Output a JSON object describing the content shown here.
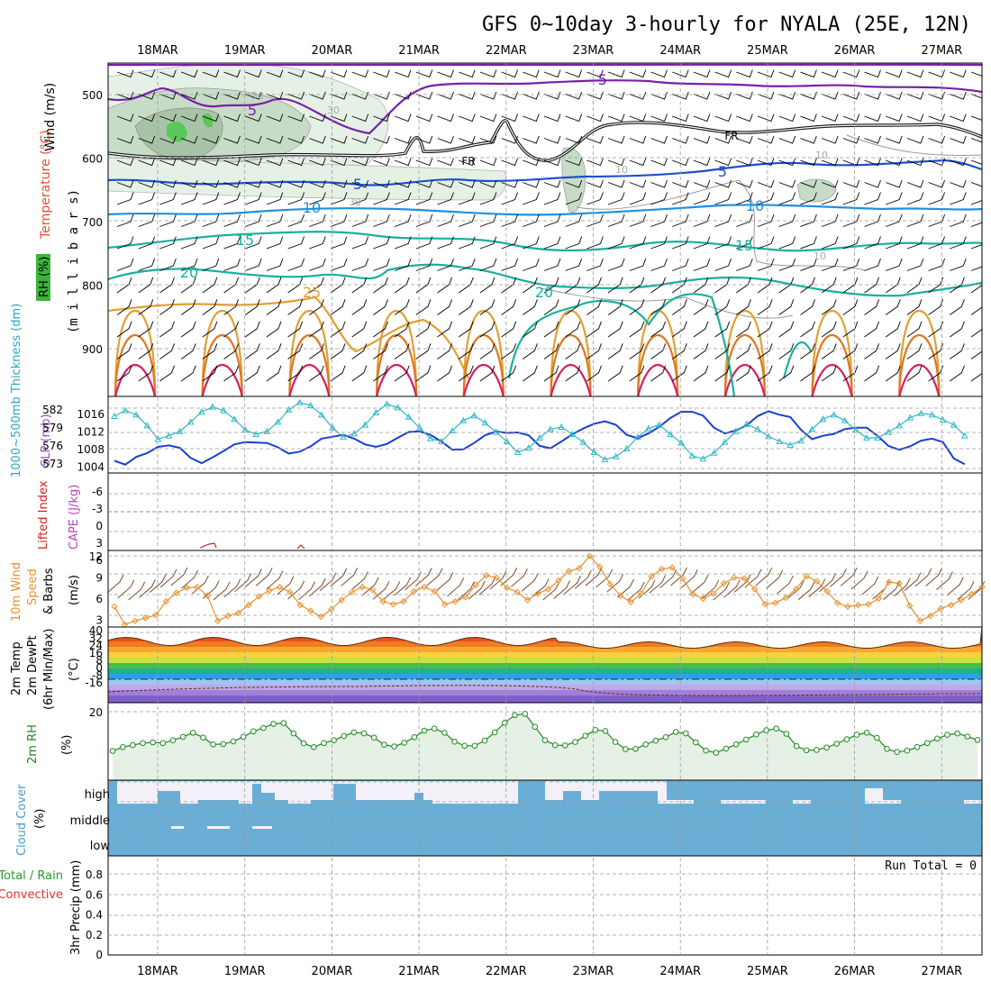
{
  "title": "GFS 0~10day 3-hourly for NYALA (25E, 12N)",
  "dates": [
    "18MAR",
    "19MAR",
    "20MAR",
    "21MAR",
    "22MAR",
    "23MAR",
    "24MAR",
    "25MAR",
    "26MAR",
    "27MAR"
  ],
  "run_total": "Run Total = 0",
  "panels": {
    "upper": {
      "ylabel": "(m i l l i b a r s)",
      "wind_label": "Wind (m/s)",
      "temp_label": "Temperature (°C)",
      "rh_label": "RH (%)",
      "ticks": [
        "500",
        "600",
        "700",
        "800",
        "900"
      ],
      "contour_labels": [
        "-5",
        "5",
        "FR",
        "FR",
        "5",
        "5",
        "10",
        "10",
        "15",
        "15",
        "20",
        "20",
        "25",
        "50",
        "30",
        "30",
        "10",
        "10",
        "10"
      ]
    },
    "slp": {
      "thickness_label": "1000~500mb Thickness (dm)",
      "slp_label": "SLP (mb)",
      "left_ticks": [
        "582",
        "579",
        "576",
        "573"
      ],
      "right_ticks": [
        "1016",
        "1012",
        "1008",
        "1004"
      ]
    },
    "cape": {
      "li_label": "Lifted Index",
      "cape_label": "CAPE (J/kg)",
      "ticks": [
        "-6",
        "-3",
        "0",
        "3",
        "6"
      ]
    },
    "wind10": {
      "label1": "10m Wind",
      "label2": "Speed",
      "label3": "& Barbs",
      "unit": "(m/s)",
      "ticks": [
        "12",
        "9",
        "6",
        "3"
      ]
    },
    "temp2m": {
      "label1": "2m Temp",
      "label2": "2m DewPt",
      "label3": "(6hr Min/Max)",
      "unit": "(°C)",
      "ticks": [
        "40",
        "32",
        "24",
        "16",
        "8",
        "0",
        "-8",
        "-16"
      ]
    },
    "rh2m": {
      "label": "2m RH",
      "unit": "(%)",
      "ticks": [
        "20"
      ]
    },
    "cloud": {
      "label": "Cloud Cover",
      "unit": "(%)",
      "levels": [
        "high",
        "middle",
        "low"
      ]
    },
    "precip": {
      "label1": "Total / Rain",
      "label2": "Convective",
      "ylabel": "3hr Precip (mm)",
      "ticks": [
        "0.8",
        "0.6",
        "0.4",
        "0.2",
        "0"
      ]
    }
  },
  "chart_data": [
    {
      "type": "line",
      "name": "thickness_and_slp",
      "x": [
        "17MAR12",
        "17MAR15",
        "17MAR18",
        "17MAR21",
        "18MAR00",
        "18MAR03",
        "18MAR06",
        "18MAR09",
        "18MAR12",
        "18MAR15",
        "18MAR18",
        "18MAR21",
        "19MAR00",
        "19MAR03",
        "19MAR06",
        "19MAR09",
        "19MAR12",
        "19MAR15",
        "19MAR18",
        "19MAR21",
        "20MAR00",
        "20MAR03",
        "20MAR06",
        "20MAR09",
        "20MAR12",
        "20MAR15",
        "20MAR18",
        "20MAR21",
        "21MAR00",
        "21MAR03",
        "21MAR06",
        "21MAR09",
        "21MAR12",
        "21MAR15",
        "21MAR18",
        "21MAR21",
        "22MAR00",
        "22MAR03",
        "22MAR06",
        "22MAR09",
        "22MAR12",
        "22MAR15",
        "22MAR18",
        "22MAR21",
        "23MAR00",
        "23MAR03",
        "23MAR06",
        "23MAR09",
        "23MAR12",
        "23MAR15",
        "23MAR18",
        "23MAR21",
        "24MAR00",
        "24MAR03",
        "24MAR06",
        "24MAR09",
        "24MAR12",
        "24MAR15",
        "24MAR18",
        "24MAR21",
        "25MAR00",
        "25MAR03",
        "25MAR06",
        "25MAR09",
        "25MAR12",
        "25MAR15",
        "25MAR18",
        "25MAR21",
        "26MAR00",
        "26MAR03",
        "26MAR06",
        "26MAR09",
        "26MAR12",
        "26MAR15",
        "26MAR18",
        "26MAR21",
        "27MAR00",
        "27MAR03",
        "27MAR06"
      ],
      "series": [
        {
          "values": [
            580.5,
            581.3,
            580.7,
            579.2,
            577.3,
            577.8,
            578.4,
            579.7,
            581.1,
            581.8,
            581.3,
            580.1,
            578.6,
            578.0,
            578.4,
            579.7,
            581.4,
            582.4,
            582.0,
            580.7,
            578.9,
            577.6,
            578.1,
            579.3,
            581.0,
            582.2,
            581.7,
            580.4,
            578.9,
            577.4,
            577.0,
            578.5,
            579.9,
            580.6,
            579.6,
            578.3,
            577.0,
            575.5,
            576.1,
            577.5,
            578.7,
            579.0,
            578.0,
            576.9,
            575.5,
            574.5,
            574.9,
            576.0,
            577.6,
            578.8,
            579.3,
            578.0,
            576.8,
            575.0,
            574.6,
            575.4,
            576.9,
            578.4,
            579.4,
            578.7,
            577.7,
            577.0,
            576.5,
            577.1,
            578.7,
            580.1,
            580.7,
            579.9,
            578.6,
            577.5,
            577.5,
            578.3,
            579.2,
            580.3,
            580.9,
            580.7,
            580.0,
            579.3,
            577.8
          ]
        },
        {
          "values": [
            1005.6,
            1004.8,
            1006.4,
            1007.2,
            1008.5,
            1008.8,
            1008.3,
            1006.2,
            1005.1,
            1006.3,
            1007.6,
            1009.0,
            1009.5,
            1009.4,
            1009.3,
            1008.4,
            1007.1,
            1007.5,
            1008.6,
            1010.2,
            1010.6,
            1011.0,
            1010.2,
            1009.0,
            1008.5,
            1009.1,
            1010.4,
            1011.6,
            1011.7,
            1011.0,
            1009.6,
            1007.9,
            1008.0,
            1009.3,
            1010.9,
            1011.7,
            1011.4,
            1011.5,
            1010.9,
            1008.7,
            1008.2,
            1009.6,
            1011.1,
            1012.3,
            1013.3,
            1013.8,
            1013.1,
            1011.0,
            1010.3,
            1011.3,
            1012.7,
            1014.5,
            1015.8,
            1015.8,
            1015.0,
            1012.5,
            1011.3,
            1011.9,
            1013.0,
            1014.9,
            1015.9,
            1015.2,
            1014.7,
            1012.0,
            1010.1,
            1010.8,
            1011.2,
            1012.2,
            1012.5,
            1012.5,
            1010.8,
            1008.7,
            1007.9,
            1008.6,
            1009.8,
            1010.2,
            1009.5,
            1006.1,
            1004.9
          ]
        }
      ],
      "ylim_left": [
        573,
        582
      ],
      "ylim_right": [
        1004,
        1016
      ]
    },
    {
      "type": "line",
      "name": "wind10m_speed",
      "series": [
        {
          "values": [
            4.6,
            2.1,
            2.6,
            3.0,
            3.4,
            5.3,
            6.5,
            7.2,
            7.3,
            6.1,
            2.6,
            3.3,
            3.7,
            4.8,
            6.0,
            6.8,
            7.3,
            6.6,
            4.8,
            4.0,
            3.2,
            4.2,
            5.5,
            6.6,
            7.3,
            6.9,
            5.3,
            4.9,
            5.3,
            6.7,
            7.3,
            6.7,
            4.9,
            5.3,
            5.9,
            7.6,
            8.9,
            8.6,
            7.2,
            6.6,
            5.5,
            6.4,
            7.0,
            8.2,
            9.5,
            9.9,
            11.6,
            10.1,
            7.7,
            6.1,
            5.2,
            6.4,
            8.8,
            9.8,
            10.0,
            8.5,
            6.3,
            5.7,
            6.4,
            7.8,
            8.6,
            8.5,
            7.0,
            4.9,
            5.1,
            5.8,
            7.0,
            8.8,
            8.1,
            6.7,
            5.1,
            4.6,
            4.8,
            4.9,
            5.7,
            8.0,
            7.8,
            4.7,
            2.6,
            3.3,
            4.3,
            4.8,
            5.5,
            6.3,
            7.3
          ]
        }
      ],
      "ylim": [
        2,
        12
      ]
    },
    {
      "type": "area",
      "name": "rh2m",
      "series": [
        {
          "values": [
            8.5,
            9.6,
            10.2,
            10.8,
            11.0,
            10.8,
            11.6,
            12.6,
            13.8,
            12.4,
            10.4,
            10.5,
            11.3,
            12.6,
            14.2,
            15.2,
            16.4,
            16.6,
            13.6,
            10.7,
            9.6,
            10.8,
            11.6,
            12.8,
            13.9,
            13.6,
            12.4,
            10.3,
            9.8,
            10.9,
            12.5,
            14.4,
            15.0,
            13.8,
            11.2,
            10.0,
            10.0,
            11.5,
            13.9,
            16.7,
            18.9,
            19.3,
            15.5,
            11.6,
            10.2,
            10.1,
            11.1,
            12.9,
            14.6,
            14.3,
            11.1,
            9.0,
            9.1,
            10.4,
            11.5,
            12.5,
            14.0,
            13.6,
            11.0,
            8.6,
            8.0,
            9.2,
            10.4,
            11.8,
            13.3,
            14.5,
            15.0,
            13.5,
            9.9,
            8.7,
            8.8,
            9.5,
            10.6,
            11.9,
            13.2,
            13.8,
            12.3,
            9.1,
            8.2,
            8.6,
            9.6,
            10.8,
            12.1,
            13.2,
            13.6,
            12.7,
            11.7
          ]
        }
      ],
      "ylim": [
        0,
        22
      ]
    },
    {
      "type": "bar",
      "name": "precip_3hr",
      "values": [],
      "ylim": [
        0,
        1
      ]
    }
  ]
}
